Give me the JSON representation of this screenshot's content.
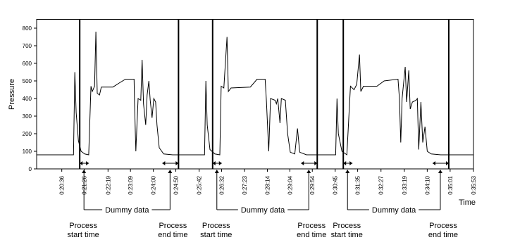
{
  "chart_data": {
    "type": "line",
    "y_label": "Pressure",
    "x_label": "Time",
    "ylim": [
      0,
      850
    ],
    "yticks": [
      0,
      100,
      200,
      300,
      400,
      500,
      600,
      700,
      800
    ],
    "xlim": [
      1180,
      2153
    ],
    "xticks": [
      {
        "value": 1236,
        "label": "0:20:36"
      },
      {
        "value": 1286,
        "label": "0:21:26"
      },
      {
        "value": 1339,
        "label": "0:22:19"
      },
      {
        "value": 1389,
        "label": "0:23:09"
      },
      {
        "value": 1440,
        "label": "0:24:00"
      },
      {
        "value": 1490,
        "label": "0:24:50"
      },
      {
        "value": 1542,
        "label": "0:25:42"
      },
      {
        "value": 1592,
        "label": "0:26:32"
      },
      {
        "value": 1643,
        "label": "0:27:23"
      },
      {
        "value": 1694,
        "label": "0:28:14"
      },
      {
        "value": 1744,
        "label": "0:29:04"
      },
      {
        "value": 1794,
        "label": "0:29:54"
      },
      {
        "value": 1845,
        "label": "0:30:45"
      },
      {
        "value": 1895,
        "label": "0:31:35"
      },
      {
        "value": 1947,
        "label": "0:32:27"
      },
      {
        "value": 1999,
        "label": "0:33:19"
      },
      {
        "value": 2050,
        "label": "0:34:10"
      },
      {
        "value": 2101,
        "label": "0:35:01"
      },
      {
        "value": 2153,
        "label": "0:35:53"
      }
    ],
    "color": "#000000",
    "x": [
      1180,
      1262,
      1265,
      1268,
      1273,
      1279,
      1287,
      1296,
      1301,
      1304,
      1309,
      1312,
      1315,
      1320,
      1324,
      1350,
      1365,
      1378,
      1397,
      1398,
      1401,
      1406,
      1412,
      1415,
      1418,
      1423,
      1426,
      1430,
      1433,
      1437,
      1441,
      1445,
      1448,
      1453,
      1463,
      1483,
      1554,
      1557,
      1560,
      1566,
      1577,
      1588,
      1591,
      1597,
      1604,
      1607,
      1613,
      1656,
      1671,
      1689,
      1692,
      1697,
      1701,
      1711,
      1714,
      1717,
      1722,
      1725,
      1734,
      1739,
      1745,
      1755,
      1761,
      1766,
      1781,
      1846,
      1849,
      1852,
      1860,
      1871,
      1879,
      1887,
      1893,
      1899,
      1902,
      1908,
      1938,
      1954,
      1985,
      1988,
      1991,
      1994,
      2001,
      2004,
      2009,
      2012,
      2017,
      2025,
      2028,
      2031,
      2036,
      2040,
      2045,
      2050,
      2059,
      2080,
      2153
    ],
    "values": [
      80,
      80,
      550,
      320,
      160,
      100,
      85,
      80,
      470,
      440,
      470,
      780,
      430,
      420,
      465,
      465,
      490,
      510,
      510,
      380,
      100,
      400,
      390,
      620,
      370,
      250,
      420,
      500,
      390,
      290,
      400,
      380,
      250,
      120,
      85,
      80,
      80,
      500,
      250,
      110,
      85,
      80,
      470,
      460,
      750,
      440,
      460,
      465,
      510,
      510,
      380,
      100,
      400,
      390,
      370,
      400,
      260,
      400,
      390,
      200,
      95,
      85,
      230,
      95,
      80,
      80,
      400,
      200,
      100,
      80,
      470,
      450,
      480,
      650,
      440,
      470,
      470,
      500,
      510,
      400,
      150,
      400,
      580,
      380,
      560,
      340,
      380,
      390,
      400,
      110,
      380,
      150,
      240,
      100,
      85,
      80,
      80
    ],
    "process_lines": [
      1276,
      1496,
      1572,
      1805,
      1863,
      2098
    ],
    "annotations": {
      "dummy": [
        "Dummy data",
        "Dummy data",
        "Dummy data"
      ],
      "start": [
        [
          "Process",
          "start time"
        ],
        [
          "Process",
          "start time"
        ],
        [
          "Process",
          "start time"
        ]
      ],
      "end": [
        [
          "Process",
          "end time"
        ],
        [
          "Process",
          "end time"
        ],
        [
          "Process",
          "end time"
        ]
      ]
    }
  }
}
